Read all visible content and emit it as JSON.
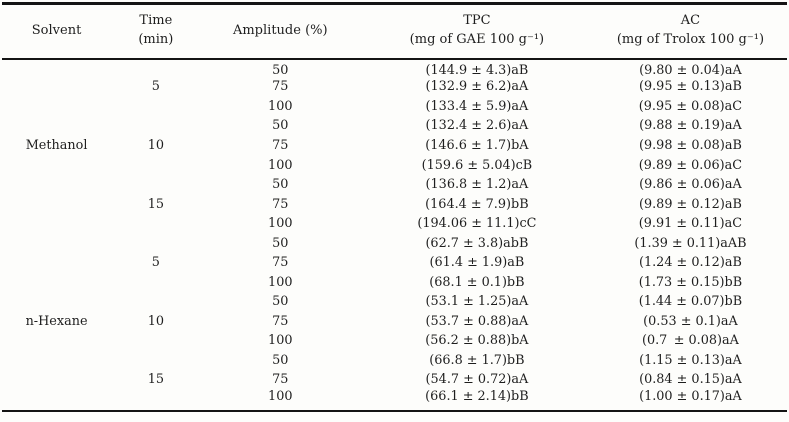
{
  "table": {
    "headers": {
      "solvent": "Solvent",
      "time": [
        "Time",
        "(min)"
      ],
      "amplitude": "Amplitude (%)",
      "tpc": [
        "TPC",
        "(mg of GAE 100 g⁻¹)"
      ],
      "ac": [
        "AC",
        "(mg of Trolox 100 g⁻¹)"
      ]
    },
    "rows": [
      {
        "solvent": "",
        "time": "",
        "amplitude": "50",
        "tpc": "(144.9 ± 4.3)aB",
        "ac": "(9.80 ± 0.04)aA"
      },
      {
        "solvent": "",
        "time": "5",
        "amplitude": "75",
        "tpc": "(132.9 ± 6.2)aA",
        "ac": "(9.95 ± 0.13)aB"
      },
      {
        "solvent": "",
        "time": "",
        "amplitude": "100",
        "tpc": "(133.4 ± 5.9)aA",
        "ac": "(9.95 ± 0.08)aC"
      },
      {
        "solvent": "",
        "time": "",
        "amplitude": "50",
        "tpc": "(132.4 ± 2.6)aA",
        "ac": "(9.88 ± 0.19)aA"
      },
      {
        "solvent": "Methanol",
        "time": "10",
        "amplitude": "75",
        "tpc": "(146.6 ± 1.7)bA",
        "ac": "(9.98 ± 0.08)aB"
      },
      {
        "solvent": "",
        "time": "",
        "amplitude": "100",
        "tpc": "(159.6 ± 5.04)cB",
        "ac": "(9.89 ± 0.06)aC"
      },
      {
        "solvent": "",
        "time": "",
        "amplitude": "50",
        "tpc": "(136.8 ± 1.2)aA",
        "ac": "(9.86 ± 0.06)aA"
      },
      {
        "solvent": "",
        "time": "15",
        "amplitude": "75",
        "tpc": "(164.4 ± 7.9)bB",
        "ac": "(9.89 ± 0.12)aB"
      },
      {
        "solvent": "",
        "time": "",
        "amplitude": "100",
        "tpc": "(194.06 ± 11.1)cC",
        "ac": "(9.91 ± 0.11)aC"
      },
      {
        "solvent": "",
        "time": "",
        "amplitude": "50",
        "tpc": "(62.7 ± 3.8)abB",
        "ac": "(1.39 ± 0.11)aAB"
      },
      {
        "solvent": "",
        "time": "5",
        "amplitude": "75",
        "tpc": "(61.4 ± 1.9)aB",
        "ac": "(1.24 ± 0.12)aB"
      },
      {
        "solvent": "",
        "time": "",
        "amplitude": "100",
        "tpc": "(68.1 ± 0.1)bB",
        "ac": "(1.73 ± 0.15)bB"
      },
      {
        "solvent": "",
        "time": "",
        "amplitude": "50",
        "tpc": "(53.1 ± 1.25)aA",
        "ac": "(1.44 ± 0.07)bB"
      },
      {
        "solvent": "n-Hexane",
        "time": "10",
        "amplitude": "75",
        "tpc": "(53.7 ± 0.88)aA",
        "ac": "(0.53 ± 0.1)aA"
      },
      {
        "solvent": "",
        "time": "",
        "amplitude": "100",
        "tpc": "(56.2 ± 0.88)bA",
        "ac": "(0.7 ± 0.08)aA"
      },
      {
        "solvent": "",
        "time": "",
        "amplitude": "50",
        "tpc": "(66.8 ± 1.7)bB",
        "ac": "(1.15 ± 0.13)aA"
      },
      {
        "solvent": "",
        "time": "15",
        "amplitude": "75",
        "tpc": "(54.7 ± 0.72)aA",
        "ac": "(0.84 ± 0.15)aA"
      },
      {
        "solvent": "",
        "time": "",
        "amplitude": "100",
        "tpc": "(66.1 ± 2.14)bB",
        "ac": "(1.00 ± 0.17)aA"
      }
    ]
  }
}
